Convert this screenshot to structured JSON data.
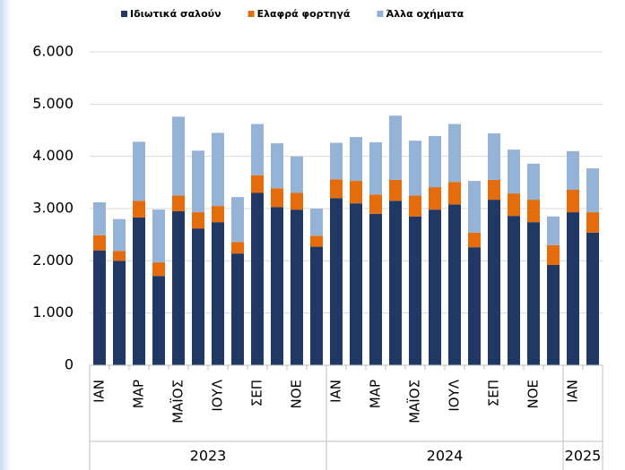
{
  "chart_data": {
    "type": "stacked_bar",
    "category_groups": [
      {
        "label": "2023",
        "categories": [
          "ΙΑΝ",
          null,
          "ΜΑΡ",
          null,
          "ΜΑΪΟΣ",
          null,
          "ΙΟΥΛ",
          null,
          "ΣΕΠ",
          null,
          "ΝΟΕ",
          null
        ]
      },
      {
        "label": "2024",
        "categories": [
          "ΙΑΝ",
          null,
          "ΜΑΡ",
          null,
          "ΜΑΪΟΣ",
          null,
          "ΙΟΥΛ",
          null,
          "ΣΕΠ",
          null,
          "ΝΟΕ",
          null
        ]
      },
      {
        "label": "2025",
        "categories": [
          "ΙΑΝ",
          null
        ]
      }
    ],
    "series": [
      {
        "name": "Ιδιωτικά σαλούν",
        "color": "#1f3864",
        "values": [
          2200,
          2000,
          2830,
          1710,
          2950,
          2620,
          2740,
          2140,
          3300,
          3030,
          2980,
          2270,
          3200,
          3100,
          2900,
          3150,
          2850,
          2980,
          3080,
          2260,
          3170,
          2860,
          2740,
          1920,
          2930,
          2540
        ]
      },
      {
        "name": "Ελαφρά φορτηγά",
        "color": "#e46c0a",
        "values": [
          290,
          190,
          320,
          260,
          300,
          310,
          310,
          220,
          340,
          360,
          320,
          210,
          360,
          430,
          370,
          400,
          400,
          430,
          430,
          280,
          380,
          430,
          430,
          380,
          430,
          390
        ]
      },
      {
        "name": "Άλλα οχήματα",
        "color": "#95b3d7",
        "values": [
          630,
          610,
          1130,
          1010,
          1510,
          1180,
          1400,
          860,
          980,
          860,
          700,
          520,
          700,
          840,
          1000,
          1230,
          1050,
          980,
          1110,
          990,
          890,
          840,
          690,
          550,
          740,
          840
        ]
      }
    ],
    "ylim": [
      0,
      6000
    ],
    "yticks": [
      0,
      {
        "value": 1000,
        "label": "1.000"
      },
      {
        "value": 2000,
        "label": "2.000"
      },
      {
        "value": 3000,
        "label": "3.000"
      },
      {
        "value": 4000,
        "label": "4.000"
      },
      {
        "value": 5000,
        "label": "5.000"
      },
      {
        "value": 6000,
        "label": "6.000"
      }
    ],
    "grid": true,
    "legend": "top"
  }
}
